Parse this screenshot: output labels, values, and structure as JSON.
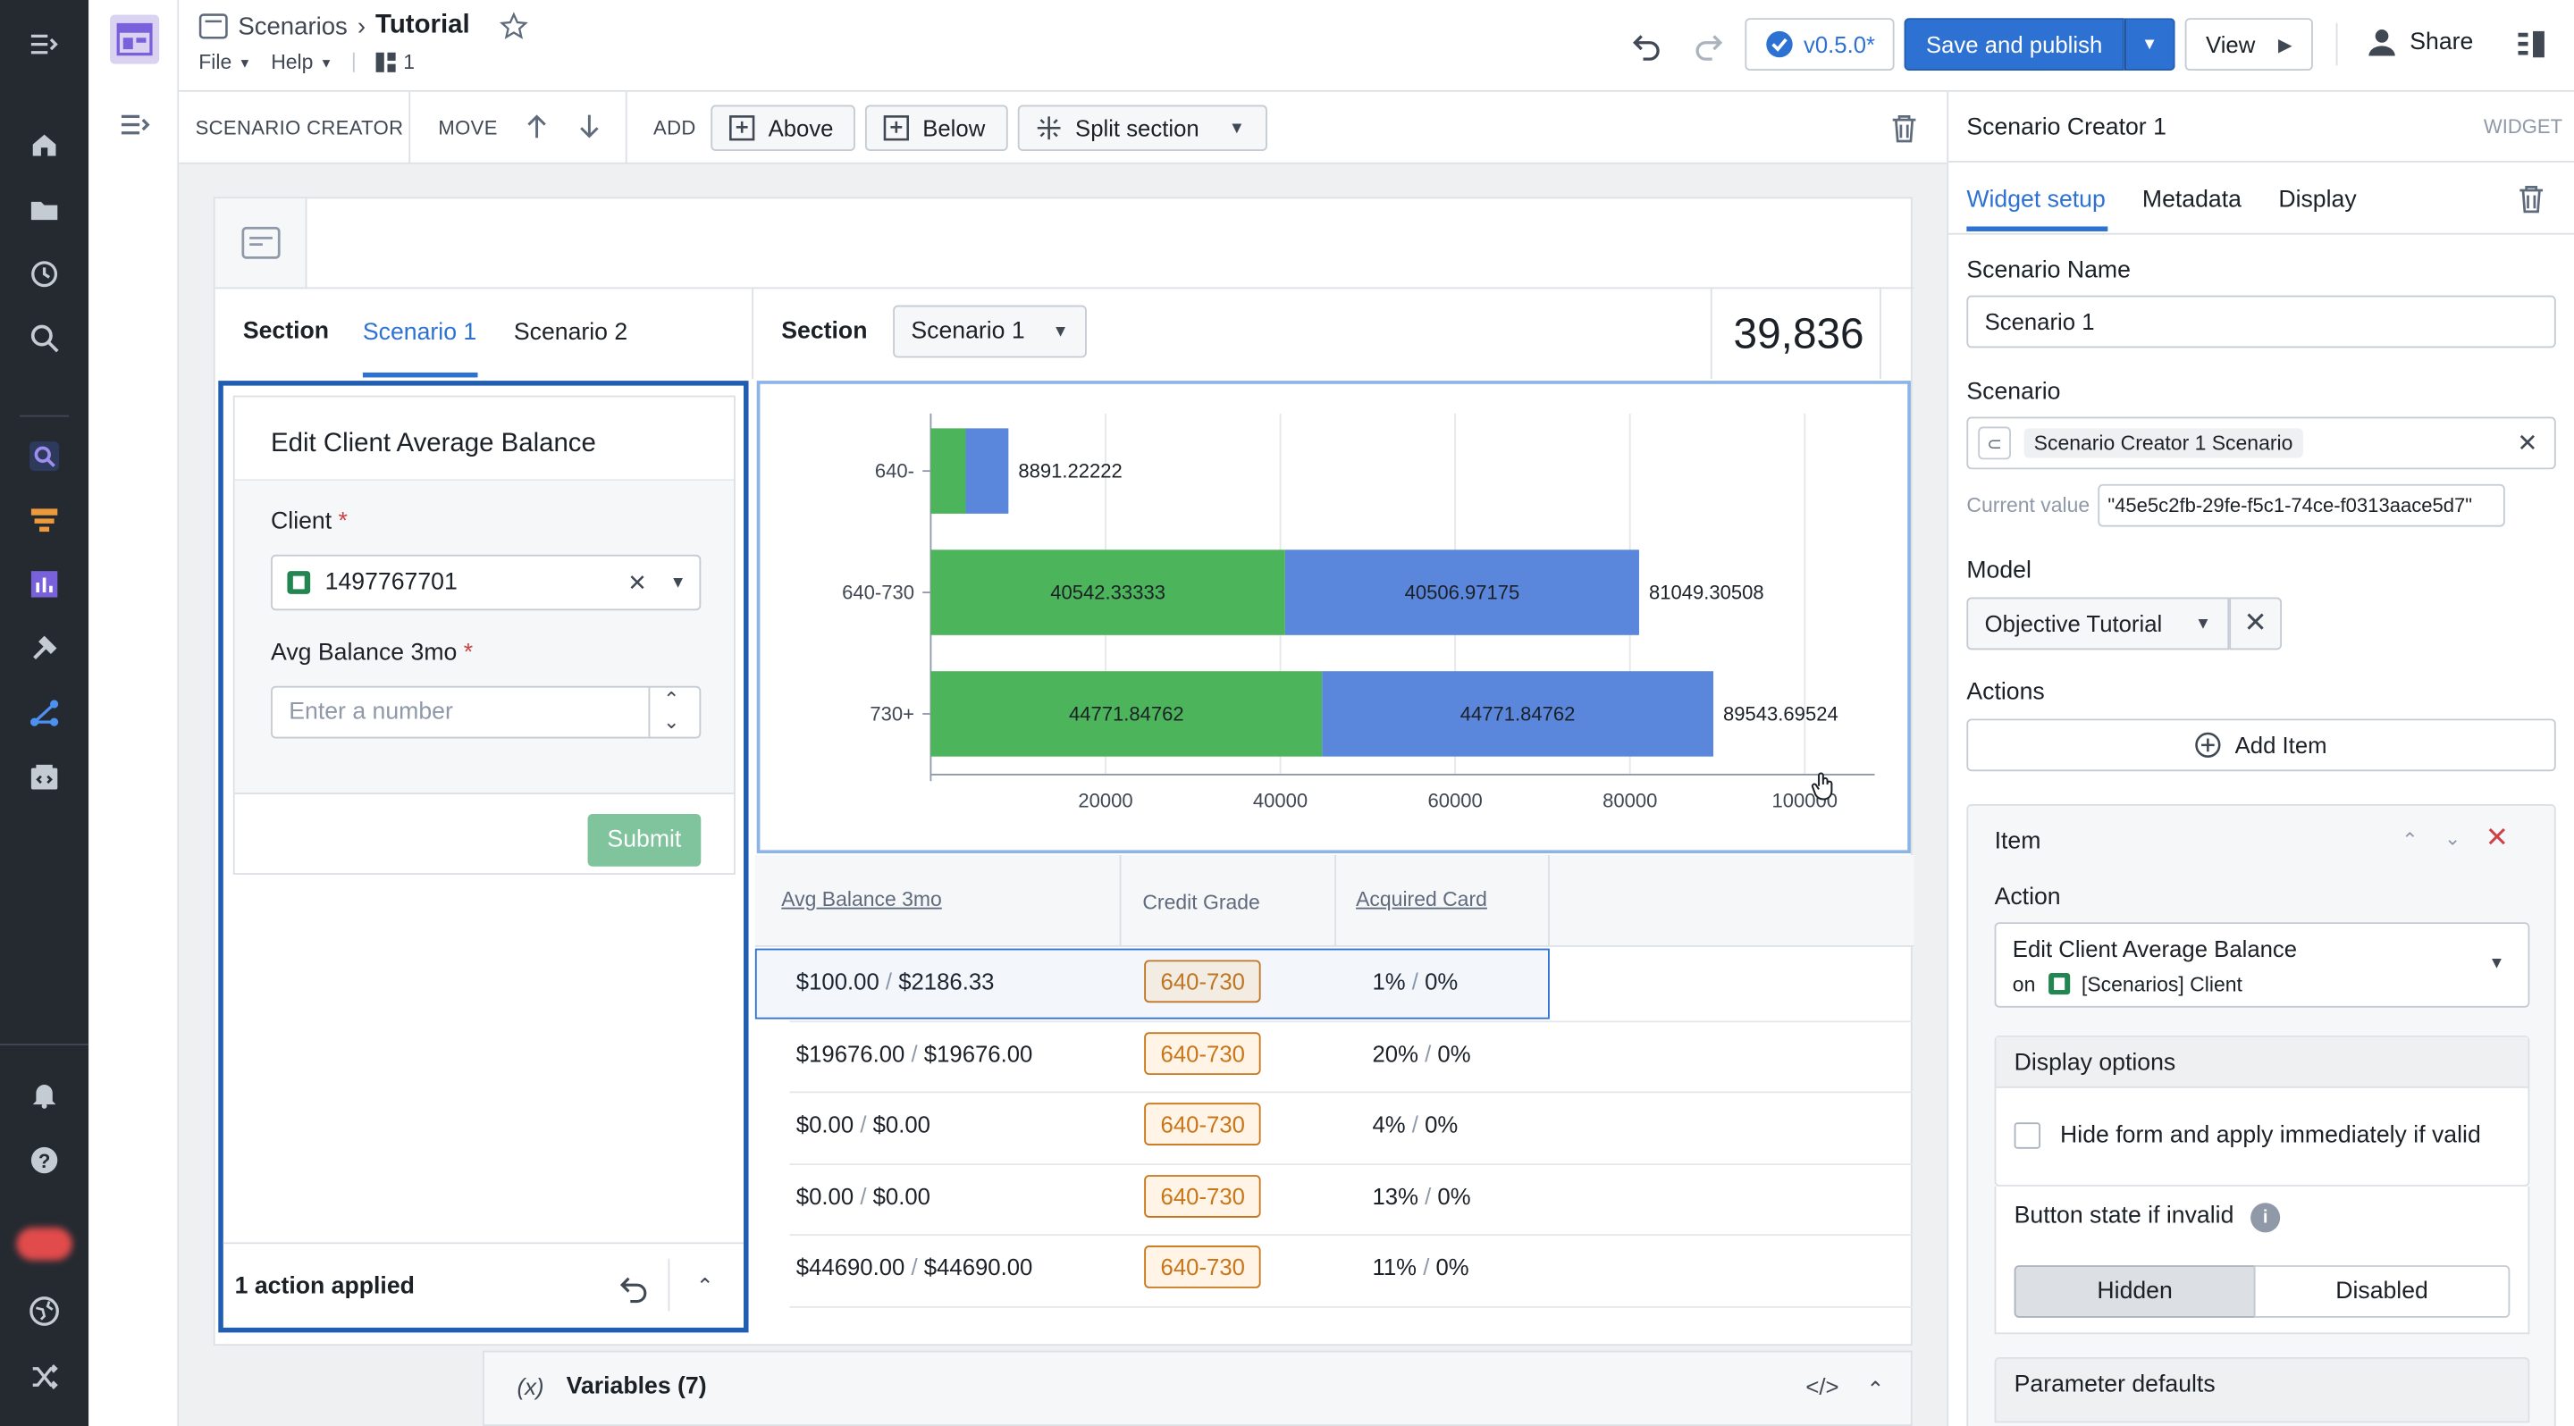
{
  "rail": {
    "icons": [
      "menu-icon",
      "home-icon",
      "folder-icon",
      "history-icon",
      "search-icon",
      "object-explorer-icon",
      "workshop-icon",
      "quiver-icon",
      "hammer-icon",
      "pipeline-icon",
      "app-icon",
      "bell-icon",
      "help-icon",
      "avatar",
      "globe-icon",
      "shuffle-icon"
    ]
  },
  "header": {
    "breadcrumb_parent": "Scenarios",
    "title": "Tutorial",
    "menus": [
      "File",
      "Help"
    ],
    "page_count": "1",
    "version": "v0.5.0*",
    "save_publish": "Save and publish",
    "view": "View",
    "share": "Share"
  },
  "toolbar": {
    "widget_label": "SCENARIO CREATOR",
    "move_label": "MOVE",
    "add_label": "ADD",
    "above": "Above",
    "below": "Below",
    "split": "Split section"
  },
  "canvas": {
    "left_section_label": "Section",
    "tabs": [
      "Scenario 1",
      "Scenario 2"
    ],
    "right_section_label": "Section",
    "scenario_select": "Scenario 1",
    "metric": "39,836",
    "form": {
      "title": "Edit Client Average Balance",
      "client_label": "Client",
      "client_value": "1497767701",
      "balance_label": "Avg Balance 3mo",
      "balance_placeholder": "Enter a number",
      "submit": "Submit",
      "footer": "1 action applied"
    },
    "table": {
      "headers": [
        "Avg Balance 3mo",
        "Credit Grade",
        "Acquired Card"
      ],
      "rows": [
        {
          "a": "$100.00",
          "b": "$2186.33",
          "grade": "640-730",
          "c": "1%",
          "d": "0%"
        },
        {
          "a": "$19676.00",
          "b": "$19676.00",
          "grade": "640-730",
          "c": "20%",
          "d": "0%"
        },
        {
          "a": "$0.00",
          "b": "$0.00",
          "grade": "640-730",
          "c": "4%",
          "d": "0%"
        },
        {
          "a": "$0.00",
          "b": "$0.00",
          "grade": "640-730",
          "c": "13%",
          "d": "0%"
        },
        {
          "a": "$44690.00",
          "b": "$44690.00",
          "grade": "640-730",
          "c": "11%",
          "d": "0%"
        }
      ]
    },
    "variables": "Variables (7)"
  },
  "chart_data": {
    "type": "bar",
    "orientation": "horizontal",
    "stacked": true,
    "categories": [
      "640-",
      "640-730",
      "730+"
    ],
    "series": [
      {
        "values": [
          4000,
          40542.33333,
          44771.84762
        ],
        "color": "#4cb45a"
      },
      {
        "values": [
          4891.22222,
          40506.97175,
          44771.84762
        ],
        "color": "#5a86dc"
      }
    ],
    "segment_labels": [
      [
        "",
        ""
      ],
      [
        "40542.33333",
        "40506.97175"
      ],
      [
        "44771.84762",
        "44771.84762"
      ]
    ],
    "totals": [
      "8891.22222",
      "81049.30508",
      "89543.69524"
    ],
    "xticks": [
      "20000",
      "40000",
      "60000",
      "80000",
      "100000"
    ],
    "xlim": [
      0,
      108000
    ],
    "grid": true
  },
  "panel": {
    "title": "Scenario Creator 1",
    "type_label": "WIDGET",
    "tabs": [
      "Widget setup",
      "Metadata",
      "Display"
    ],
    "name_label": "Scenario Name",
    "name_value": "Scenario 1",
    "scenario_label": "Scenario",
    "scenario_tag": "Scenario Creator 1 Scenario",
    "current_label": "Current value",
    "current_value": "\"45e5c2fb-29fe-f5c1-74ce-f0313aace5d7\"",
    "model_label": "Model",
    "model_value": "Objective Tutorial",
    "actions_label": "Actions",
    "add_item": "Add Item",
    "item_label": "Item",
    "action_label": "Action",
    "action_value": "Edit Client Average Balance",
    "action_on": "on",
    "action_object": "[Scenarios] Client",
    "display_options": "Display options",
    "hide_form": "Hide form and apply immediately if valid",
    "button_state": "Button state if invalid",
    "state_hidden": "Hidden",
    "state_disabled": "Disabled",
    "param_defaults": "Parameter defaults"
  },
  "colors": {
    "accent": "#2d72d2",
    "green": "#4cb45a",
    "blue": "#5a86dc",
    "danger": "#cd4246",
    "grade": "#c87619"
  }
}
